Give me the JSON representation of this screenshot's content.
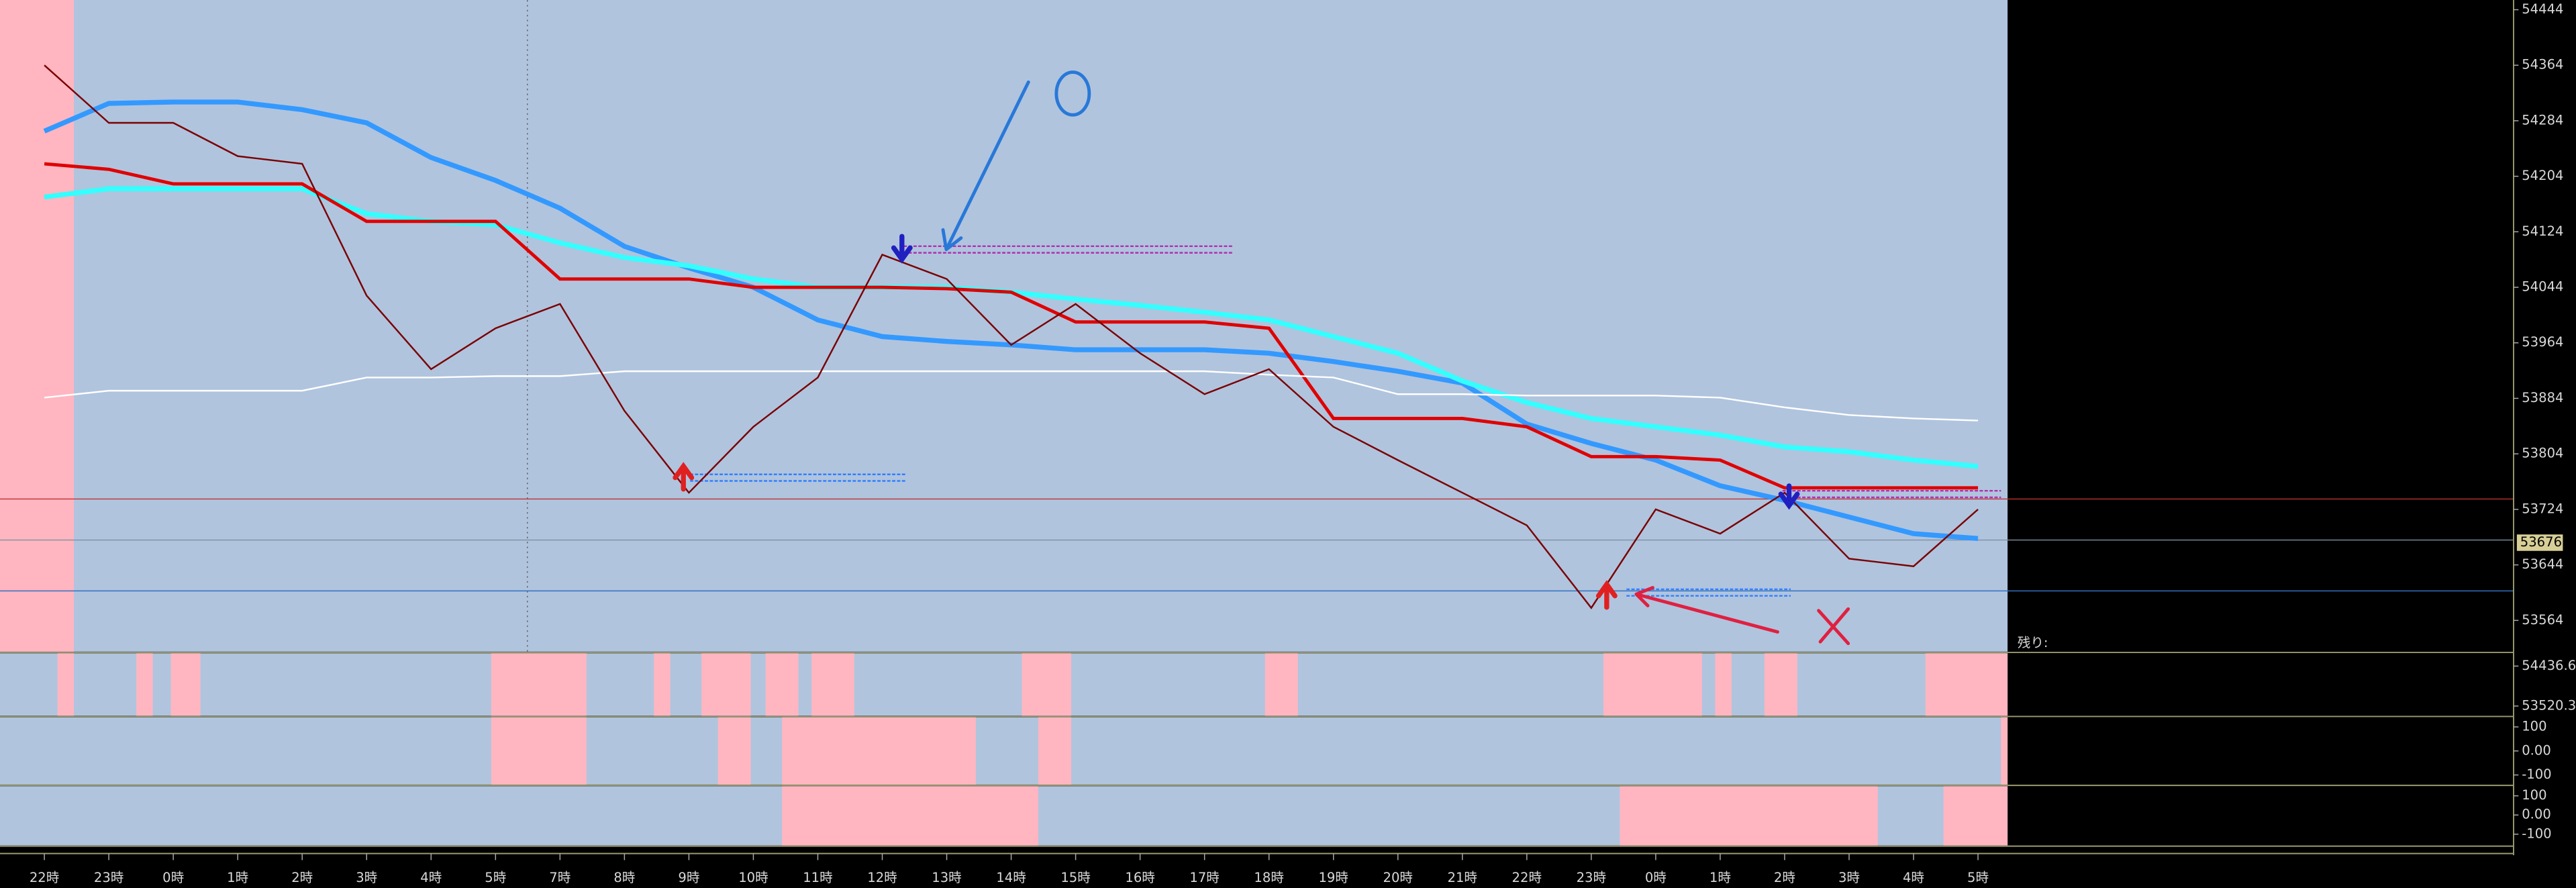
{
  "chart_data": [
    {
      "type": "line",
      "categories": [
        "22時",
        "23時",
        "0時",
        "1時",
        "2時",
        "3時",
        "4時",
        "5時",
        "7時",
        "8時",
        "9時",
        "10時",
        "11時",
        "12時",
        "13時",
        "14時",
        "15時",
        "16時",
        "17時",
        "18時",
        "19時",
        "20時",
        "21時",
        "22時",
        "23時",
        "0時",
        "1時",
        "2時",
        "3時",
        "4時",
        "5時"
      ],
      "ylim": [
        53519,
        54458
      ],
      "yticks": [
        54444,
        54364,
        54284,
        54204,
        54124,
        54044,
        53964,
        53884,
        53804,
        53724,
        53644,
        53564
      ],
      "price_label": 53676,
      "annotations": [
        "残り:"
      ],
      "series": [
        {
          "color": "#3399ff",
          "values": [
            54269,
            54309,
            54311,
            54311,
            54300,
            54281,
            54231,
            54198,
            54158,
            54103,
            54072,
            54044,
            53997,
            53973,
            53966,
            53961,
            53954,
            53954,
            53954,
            53949,
            53937,
            53923,
            53906,
            53847,
            53819,
            53795,
            53758,
            53737,
            53713,
            53689,
            53682
          ]
        },
        {
          "color": "#33ffff",
          "values": [
            54174,
            54186,
            54186,
            54186,
            54186,
            54150,
            54139,
            54134,
            54108,
            54087,
            54075,
            54056,
            54044,
            54044,
            54044,
            54037,
            54027,
            54018,
            54008,
            53997,
            53973,
            53949,
            53909,
            53878,
            53855,
            53843,
            53831,
            53814,
            53807,
            53795,
            53786
          ]
        },
        {
          "color": "#e00000",
          "values": [
            54222,
            54214,
            54193,
            54193,
            54193,
            54139,
            54139,
            54139,
            54056,
            54056,
            54056,
            54044,
            54044,
            54044,
            54042,
            54037,
            53994,
            53994,
            53994,
            53985,
            53855,
            53855,
            53855,
            53843,
            53800,
            53800,
            53795,
            53755,
            53755,
            53755,
            53755
          ]
        },
        {
          "color": "#ffffff",
          "values": [
            53885,
            53895,
            53895,
            53895,
            53895,
            53914,
            53914,
            53916,
            53916,
            53923,
            53923,
            53923,
            53923,
            53923,
            53923,
            53923,
            53923,
            53923,
            53923,
            53918,
            53914,
            53890,
            53890,
            53888,
            53888,
            53888,
            53885,
            53871,
            53860,
            53855,
            53852
          ]
        },
        {
          "color": "#7a0000",
          "values": [
            54364,
            54281,
            54281,
            54233,
            54222,
            54032,
            53926,
            53985,
            54020,
            53866,
            53748,
            53843,
            53914,
            54091,
            54056,
            53961,
            54020,
            53949,
            53890,
            53926,
            53843,
            53795,
            53748,
            53701,
            53582,
            53724,
            53689,
            53748,
            53653,
            53642,
            53724
          ]
        }
      ]
    },
    {
      "type": "line",
      "ylim": [
        53300,
        54730
      ],
      "yticks": [
        54436.65,
        53520.35
      ]
    },
    {
      "type": "line",
      "ylim": [
        -140,
        140
      ],
      "yticks": [
        100,
        {
          "value": 0,
          "label": "0.00"
        },
        -100
      ]
    },
    {
      "type": "line",
      "ylim": [
        -158,
        150
      ],
      "yticks": [
        100,
        {
          "value": 0,
          "label": "0.00"
        },
        -100
      ]
    }
  ]
}
